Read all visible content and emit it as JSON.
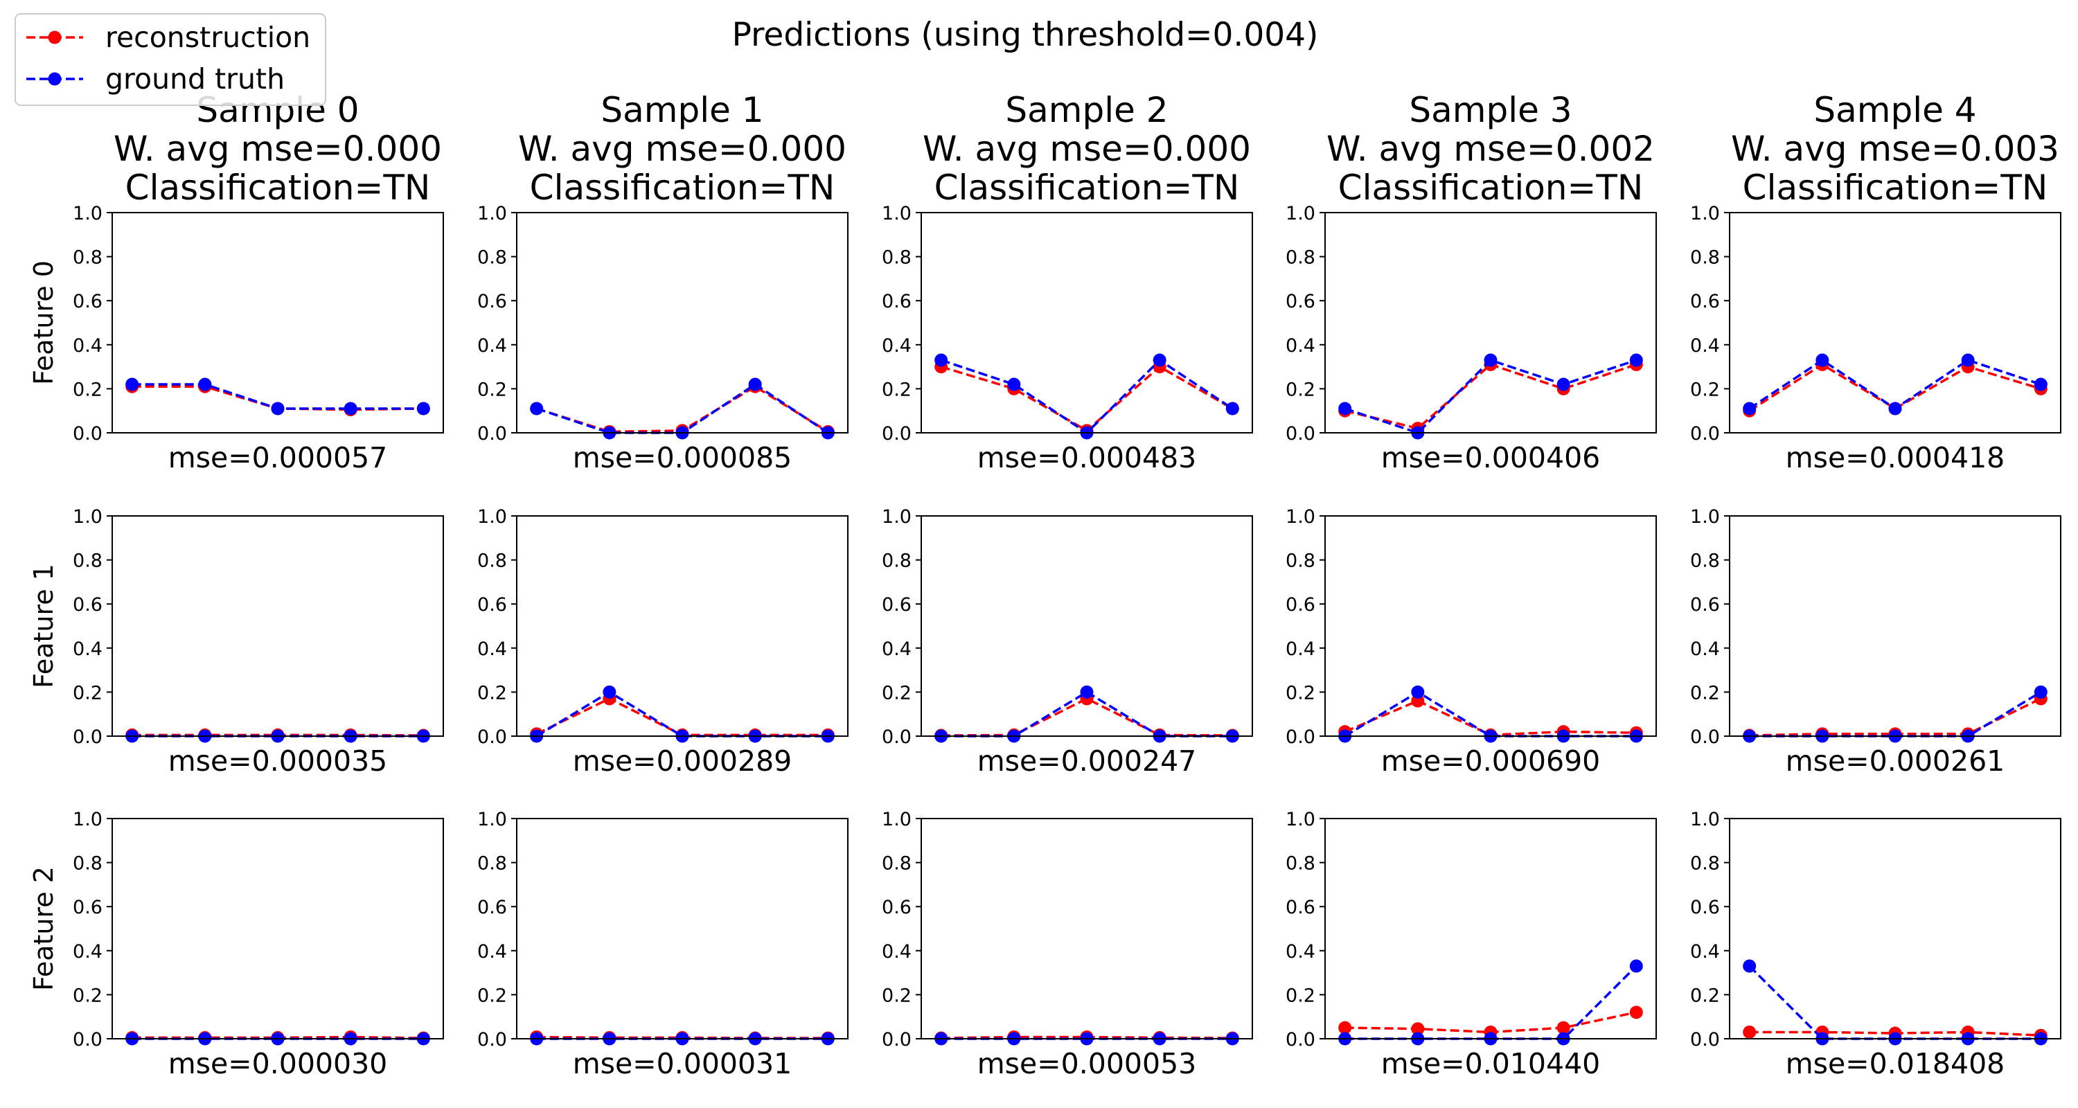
{
  "chart_data": {
    "type": "line",
    "title": "Predictions (using threshold=0.004)",
    "legend": {
      "placement": "top-left",
      "entries": [
        {
          "label": "reconstruction",
          "color": "#ff0000",
          "style": "dashed",
          "marker": "circle"
        },
        {
          "label": "ground truth",
          "color": "#0000ff",
          "style": "dashed",
          "marker": "circle"
        }
      ]
    },
    "colors": {
      "reconstruction": "#ff0000",
      "ground_truth": "#0000ff"
    },
    "ylim": [
      0,
      1
    ],
    "yticks": [
      "0.0",
      "0.2",
      "0.4",
      "0.6",
      "0.8",
      "1.0"
    ],
    "x": [
      0,
      1,
      2,
      3,
      4
    ],
    "grid": false,
    "samples": [
      {
        "title_lines": [
          "Sample 0",
          "W. avg mse=0.000",
          "Classification=TN"
        ]
      },
      {
        "title_lines": [
          "Sample 1",
          "W. avg mse=0.000",
          "Classification=TN"
        ]
      },
      {
        "title_lines": [
          "Sample 2",
          "W. avg mse=0.000",
          "Classification=TN"
        ]
      },
      {
        "title_lines": [
          "Sample 3",
          "W. avg mse=0.002",
          "Classification=TN"
        ]
      },
      {
        "title_lines": [
          "Sample 4",
          "W. avg mse=0.003",
          "Classification=TN"
        ]
      }
    ],
    "features": [
      "Feature 0",
      "Feature 1",
      "Feature 2"
    ],
    "panels": [
      [
        {
          "mse": "mse=0.000057",
          "reconstruction": [
            0.21,
            0.21,
            0.11,
            0.105,
            0.11
          ],
          "ground_truth": [
            0.22,
            0.22,
            0.11,
            0.11,
            0.11
          ]
        },
        {
          "mse": "mse=0.000085",
          "reconstruction": [
            0.11,
            0.005,
            0.01,
            0.21,
            0.005
          ],
          "ground_truth": [
            0.11,
            0.0,
            0.0,
            0.22,
            0.0
          ]
        },
        {
          "mse": "mse=0.000483",
          "reconstruction": [
            0.3,
            0.2,
            0.01,
            0.3,
            0.11
          ],
          "ground_truth": [
            0.33,
            0.22,
            0.0,
            0.33,
            0.11
          ]
        },
        {
          "mse": "mse=0.000406",
          "reconstruction": [
            0.1,
            0.02,
            0.31,
            0.2,
            0.31
          ],
          "ground_truth": [
            0.11,
            0.0,
            0.33,
            0.22,
            0.33
          ]
        },
        {
          "mse": "mse=0.000418",
          "reconstruction": [
            0.1,
            0.31,
            0.11,
            0.3,
            0.2
          ],
          "ground_truth": [
            0.11,
            0.33,
            0.11,
            0.33,
            0.22
          ]
        }
      ],
      [
        {
          "mse": "mse=0.000035",
          "reconstruction": [
            0.005,
            0.005,
            0.005,
            0.005,
            0.003
          ],
          "ground_truth": [
            0.0,
            0.0,
            0.0,
            0.0,
            0.0
          ]
        },
        {
          "mse": "mse=0.000289",
          "reconstruction": [
            0.01,
            0.17,
            0.005,
            0.005,
            0.005
          ],
          "ground_truth": [
            0.0,
            0.2,
            0.0,
            0.0,
            0.0
          ]
        },
        {
          "mse": "mse=0.000247",
          "reconstruction": [
            0.003,
            0.005,
            0.17,
            0.005,
            0.003
          ],
          "ground_truth": [
            0.0,
            0.0,
            0.2,
            0.0,
            0.0
          ]
        },
        {
          "mse": "mse=0.000690",
          "reconstruction": [
            0.02,
            0.16,
            0.005,
            0.02,
            0.015
          ],
          "ground_truth": [
            0.0,
            0.2,
            0.0,
            0.0,
            0.0
          ]
        },
        {
          "mse": "mse=0.000261",
          "reconstruction": [
            0.003,
            0.01,
            0.01,
            0.01,
            0.17
          ],
          "ground_truth": [
            0.0,
            0.0,
            0.0,
            0.0,
            0.2
          ]
        }
      ],
      [
        {
          "mse": "mse=0.000030",
          "reconstruction": [
            0.005,
            0.005,
            0.005,
            0.008,
            0.003
          ],
          "ground_truth": [
            0.0,
            0.0,
            0.0,
            0.0,
            0.0
          ]
        },
        {
          "mse": "mse=0.000031",
          "reconstruction": [
            0.008,
            0.005,
            0.005,
            0.003,
            0.003
          ],
          "ground_truth": [
            0.0,
            0.0,
            0.0,
            0.0,
            0.0
          ]
        },
        {
          "mse": "mse=0.000053",
          "reconstruction": [
            0.003,
            0.008,
            0.008,
            0.005,
            0.003
          ],
          "ground_truth": [
            0.0,
            0.0,
            0.0,
            0.0,
            0.0
          ]
        },
        {
          "mse": "mse=0.010440",
          "reconstruction": [
            0.05,
            0.045,
            0.03,
            0.05,
            0.12
          ],
          "ground_truth": [
            0.0,
            0.0,
            0.0,
            0.0,
            0.33
          ]
        },
        {
          "mse": "mse=0.018408",
          "reconstruction": [
            0.03,
            0.03,
            0.025,
            0.03,
            0.015
          ],
          "ground_truth": [
            0.33,
            0.0,
            0.0,
            0.0,
            0.0
          ]
        }
      ]
    ]
  }
}
